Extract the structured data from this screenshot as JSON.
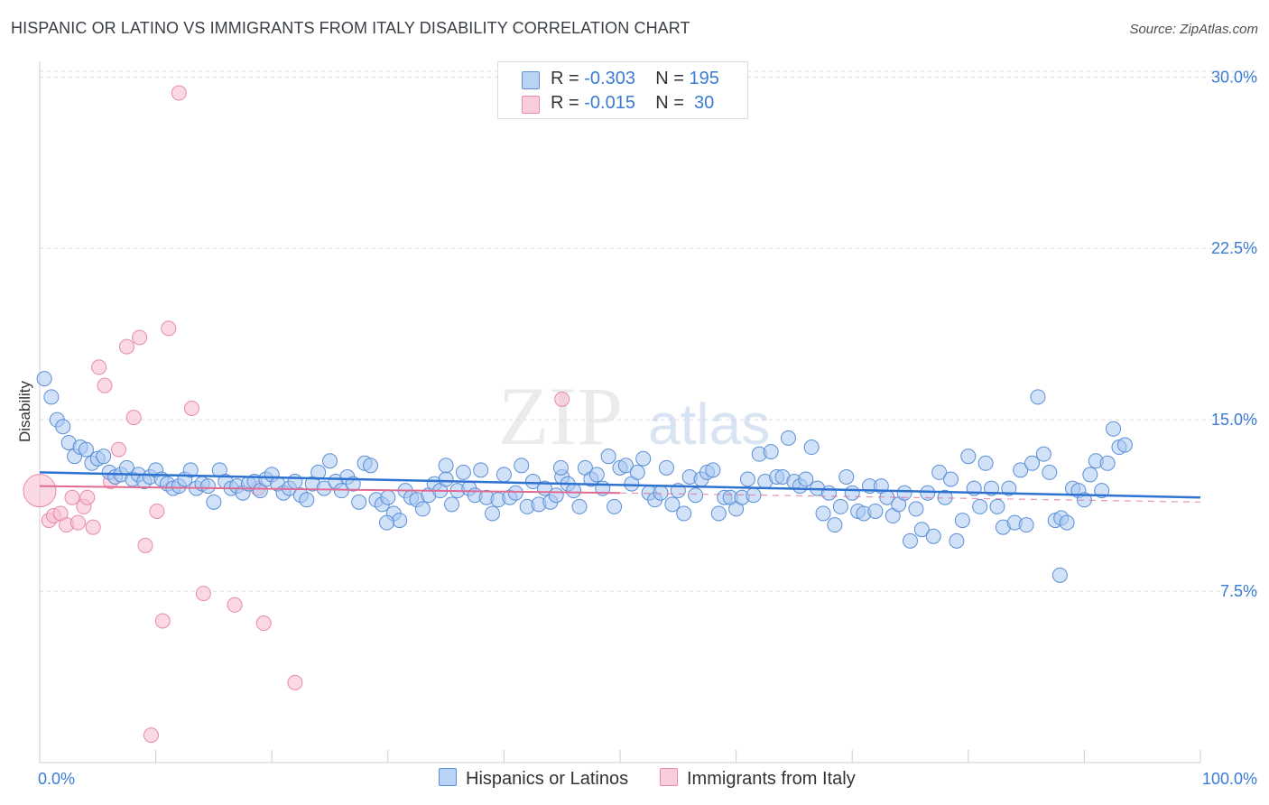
{
  "title": "HISPANIC OR LATINO VS IMMIGRANTS FROM ITALY DISABILITY CORRELATION CHART",
  "source": "Source: ZipAtlas.com",
  "watermark": {
    "zip": "ZIP",
    "atlas": "atlas"
  },
  "colors": {
    "blue_fill": "#a9c9f2",
    "blue_stroke": "#5b8fd6",
    "blue_line": "#2f73d1",
    "pink_fill": "#f7bfd0",
    "pink_stroke": "#e88aa8",
    "pink_line": "#e06a92",
    "tick_label": "#3a7bd5",
    "grid": "#d9dce0"
  },
  "legend": {
    "rows": [
      {
        "r_label": "R =",
        "r_value": "-0.303",
        "n_label": "N =",
        "n_value": "195"
      },
      {
        "r_label": "R =",
        "r_value": "-0.015",
        "n_label": "N =",
        "n_value": "30"
      }
    ]
  },
  "chart_data": {
    "type": "scatter",
    "title": "HISPANIC OR LATINO VS IMMIGRANTS FROM ITALY DISABILITY CORRELATION CHART",
    "xlabel": "",
    "ylabel": "Disability",
    "xlim": [
      0,
      100
    ],
    "ylim": [
      0,
      31
    ],
    "x_tick_labels": [
      "0.0%",
      "100.0%"
    ],
    "y_ticks": [
      7.5,
      15.0,
      22.5,
      30.0
    ],
    "y_tick_labels": [
      "7.5%",
      "15.0%",
      "22.5%",
      "30.0%"
    ],
    "grid": true,
    "series": [
      {
        "name": "Hispanics or Latinos",
        "r": -0.303,
        "n": 195,
        "trend": {
          "x": [
            0,
            100
          ],
          "y": [
            12.7,
            11.6
          ]
        },
        "points": [
          [
            0.4,
            16.8
          ],
          [
            1.0,
            16.0
          ],
          [
            1.5,
            15.0
          ],
          [
            2.0,
            14.7
          ],
          [
            2.5,
            14.0
          ],
          [
            3.0,
            13.4
          ],
          [
            3.5,
            13.8
          ],
          [
            4.0,
            13.7
          ],
          [
            4.5,
            13.1
          ],
          [
            5.0,
            13.3
          ],
          [
            5.5,
            13.4
          ],
          [
            6.0,
            12.7
          ],
          [
            6.5,
            12.5
          ],
          [
            7.0,
            12.6
          ],
          [
            7.5,
            12.9
          ],
          [
            8.0,
            12.4
          ],
          [
            8.5,
            12.6
          ],
          [
            9.0,
            12.3
          ],
          [
            9.5,
            12.5
          ],
          [
            10.0,
            12.8
          ],
          [
            10.5,
            12.4
          ],
          [
            11.0,
            12.2
          ],
          [
            11.5,
            12.0
          ],
          [
            12.0,
            12.1
          ],
          [
            12.5,
            12.4
          ],
          [
            13.0,
            12.8
          ],
          [
            13.5,
            12.0
          ],
          [
            14.0,
            12.2
          ],
          [
            14.5,
            12.1
          ],
          [
            15.0,
            11.4
          ],
          [
            15.5,
            12.8
          ],
          [
            16.0,
            12.3
          ],
          [
            16.5,
            12.0
          ],
          [
            17.0,
            12.1
          ],
          [
            17.5,
            11.8
          ],
          [
            18.0,
            12.2
          ],
          [
            18.5,
            12.3
          ],
          [
            19.0,
            11.9
          ],
          [
            19.5,
            12.4
          ],
          [
            20.0,
            12.6
          ],
          [
            20.5,
            12.2
          ],
          [
            21.0,
            11.8
          ],
          [
            21.5,
            12.0
          ],
          [
            22.0,
            12.3
          ],
          [
            22.5,
            11.7
          ],
          [
            23.0,
            11.5
          ],
          [
            23.5,
            12.2
          ],
          [
            24.0,
            12.7
          ],
          [
            24.5,
            12.0
          ],
          [
            25.0,
            13.2
          ],
          [
            25.5,
            12.3
          ],
          [
            26.0,
            11.9
          ],
          [
            26.5,
            12.5
          ],
          [
            27.0,
            12.2
          ],
          [
            27.5,
            11.4
          ],
          [
            28.0,
            13.1
          ],
          [
            28.5,
            13.0
          ],
          [
            29.0,
            11.5
          ],
          [
            29.5,
            11.3
          ],
          [
            30.0,
            11.6
          ],
          [
            30.5,
            10.9
          ],
          [
            31.0,
            10.6
          ],
          [
            31.5,
            11.9
          ],
          [
            32.0,
            11.6
          ],
          [
            32.5,
            11.5
          ],
          [
            33.0,
            11.1
          ],
          [
            33.5,
            11.7
          ],
          [
            34.0,
            12.2
          ],
          [
            34.5,
            11.9
          ],
          [
            35.0,
            12.4
          ],
          [
            35.5,
            11.3
          ],
          [
            36.0,
            11.9
          ],
          [
            36.5,
            12.7
          ],
          [
            37.0,
            12.0
          ],
          [
            37.5,
            11.7
          ],
          [
            38.0,
            12.8
          ],
          [
            38.5,
            11.6
          ],
          [
            39.0,
            10.9
          ],
          [
            39.5,
            11.5
          ],
          [
            40.0,
            12.6
          ],
          [
            40.5,
            11.6
          ],
          [
            41.0,
            11.8
          ],
          [
            41.5,
            13.0
          ],
          [
            42.0,
            11.2
          ],
          [
            42.5,
            12.3
          ],
          [
            43.0,
            11.3
          ],
          [
            43.5,
            12.0
          ],
          [
            44.0,
            11.4
          ],
          [
            44.5,
            11.7
          ],
          [
            45.0,
            12.5
          ],
          [
            45.5,
            12.2
          ],
          [
            46.0,
            11.9
          ],
          [
            46.5,
            11.2
          ],
          [
            47.0,
            12.9
          ],
          [
            47.5,
            12.4
          ],
          [
            48.0,
            12.6
          ],
          [
            48.5,
            12.0
          ],
          [
            49.0,
            13.4
          ],
          [
            49.5,
            11.2
          ],
          [
            50.0,
            12.9
          ],
          [
            50.5,
            13.0
          ],
          [
            51.0,
            12.2
          ],
          [
            51.5,
            12.7
          ],
          [
            52.0,
            13.3
          ],
          [
            52.5,
            11.8
          ],
          [
            53.0,
            11.5
          ],
          [
            53.5,
            11.8
          ],
          [
            54.0,
            12.9
          ],
          [
            54.5,
            11.3
          ],
          [
            55.0,
            11.9
          ],
          [
            55.5,
            10.9
          ],
          [
            56.0,
            12.5
          ],
          [
            56.5,
            11.7
          ],
          [
            57.0,
            12.4
          ],
          [
            57.5,
            12.7
          ],
          [
            58.0,
            12.8
          ],
          [
            58.5,
            10.9
          ],
          [
            59.0,
            11.6
          ],
          [
            59.5,
            11.6
          ],
          [
            60.0,
            11.1
          ],
          [
            60.5,
            11.6
          ],
          [
            61.0,
            12.4
          ],
          [
            61.5,
            11.7
          ],
          [
            62.0,
            13.5
          ],
          [
            62.5,
            12.3
          ],
          [
            63.0,
            13.6
          ],
          [
            63.5,
            12.5
          ],
          [
            64.0,
            12.5
          ],
          [
            64.5,
            14.2
          ],
          [
            65.0,
            12.3
          ],
          [
            65.5,
            12.1
          ],
          [
            66.0,
            12.4
          ],
          [
            66.5,
            13.8
          ],
          [
            67.0,
            12.0
          ],
          [
            67.5,
            10.9
          ],
          [
            68.0,
            11.8
          ],
          [
            68.5,
            10.4
          ],
          [
            69.0,
            11.2
          ],
          [
            69.5,
            12.5
          ],
          [
            70.0,
            11.8
          ],
          [
            70.5,
            11.0
          ],
          [
            71.0,
            10.9
          ],
          [
            71.5,
            12.1
          ],
          [
            72.0,
            11.0
          ],
          [
            72.5,
            12.1
          ],
          [
            73.0,
            11.6
          ],
          [
            73.5,
            10.8
          ],
          [
            74.0,
            11.3
          ],
          [
            74.5,
            11.8
          ],
          [
            75.0,
            9.7
          ],
          [
            75.5,
            11.1
          ],
          [
            76.0,
            10.2
          ],
          [
            76.5,
            11.8
          ],
          [
            77.0,
            9.9
          ],
          [
            77.5,
            12.7
          ],
          [
            78.0,
            11.6
          ],
          [
            78.5,
            12.4
          ],
          [
            79.0,
            9.7
          ],
          [
            79.5,
            10.6
          ],
          [
            80.0,
            13.4
          ],
          [
            80.5,
            12.0
          ],
          [
            81.0,
            11.2
          ],
          [
            81.5,
            13.1
          ],
          [
            82.0,
            12.0
          ],
          [
            82.5,
            11.2
          ],
          [
            83.0,
            10.3
          ],
          [
            83.5,
            12.0
          ],
          [
            84.0,
            10.5
          ],
          [
            84.5,
            12.8
          ],
          [
            85.0,
            10.4
          ],
          [
            85.5,
            13.1
          ],
          [
            86.0,
            16.0
          ],
          [
            86.5,
            13.5
          ],
          [
            87.0,
            12.7
          ],
          [
            87.5,
            10.6
          ],
          [
            88.0,
            10.7
          ],
          [
            88.5,
            10.5
          ],
          [
            89.0,
            12.0
          ],
          [
            89.5,
            11.9
          ],
          [
            90.0,
            11.5
          ],
          [
            90.5,
            12.6
          ],
          [
            91.0,
            13.2
          ],
          [
            91.5,
            11.9
          ],
          [
            92.0,
            13.1
          ],
          [
            92.5,
            14.6
          ],
          [
            93.0,
            13.8
          ],
          [
            93.5,
            13.9
          ],
          [
            87.9,
            8.2
          ],
          [
            35.0,
            13.0
          ],
          [
            44.9,
            12.9
          ],
          [
            29.9,
            10.5
          ]
        ]
      },
      {
        "name": "Immigrants from Italy",
        "r": -0.015,
        "n": 30,
        "trend": {
          "x": [
            0,
            50
          ],
          "y": [
            12.1,
            11.8
          ]
        },
        "trend_extension": {
          "x": [
            50,
            100
          ],
          "y": [
            11.8,
            11.4
          ]
        },
        "points": [
          [
            0.0,
            11.9
          ],
          [
            0.8,
            10.6
          ],
          [
            1.2,
            10.8
          ],
          [
            1.8,
            10.9
          ],
          [
            2.3,
            10.4
          ],
          [
            2.8,
            11.6
          ],
          [
            3.3,
            10.5
          ],
          [
            3.8,
            11.2
          ],
          [
            4.1,
            11.6
          ],
          [
            4.6,
            10.3
          ],
          [
            5.1,
            17.3
          ],
          [
            5.6,
            16.5
          ],
          [
            6.1,
            12.3
          ],
          [
            6.8,
            13.7
          ],
          [
            7.5,
            18.2
          ],
          [
            8.1,
            15.1
          ],
          [
            8.6,
            18.6
          ],
          [
            9.1,
            9.5
          ],
          [
            9.6,
            1.2
          ],
          [
            10.1,
            11.0
          ],
          [
            10.6,
            6.2
          ],
          [
            11.1,
            19.0
          ],
          [
            12.0,
            29.3
          ],
          [
            13.1,
            15.5
          ],
          [
            14.1,
            7.4
          ],
          [
            16.8,
            6.9
          ],
          [
            18.8,
            12.0
          ],
          [
            19.3,
            6.1
          ],
          [
            22.0,
            3.5
          ],
          [
            45.0,
            15.9
          ]
        ]
      }
    ]
  },
  "bottom_legend": {
    "blue": "Hispanics or Latinos",
    "pink": "Immigrants from Italy"
  }
}
